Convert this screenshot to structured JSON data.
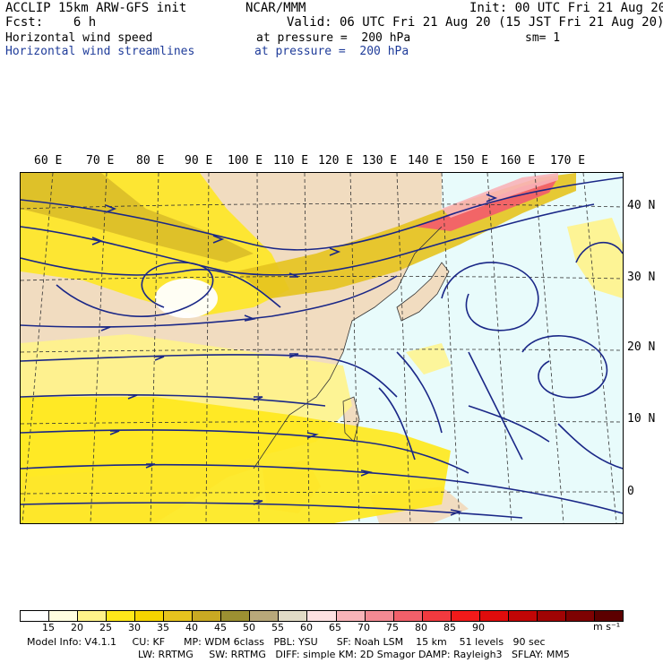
{
  "header": {
    "line1_left": "ACCLIP 15km ARW-GFS init",
    "line1_center": "NCAR/MMM",
    "line1_right": "Init: 00 UTC Fri 21 Aug 20",
    "fcst": "Fcst:    6 h",
    "valid": "Valid: 06 UTC Fri 21 Aug 20 (15 JST Fri 21 Aug 20)",
    "field1_name": "Horizontal wind speed",
    "field1_level": "at pressure =  200 hPa",
    "field1_sm": "sm= 1",
    "field2_name": "Horizontal wind streamlines",
    "field2_level": "at pressure =  200 hPa"
  },
  "map": {
    "lon_labels": [
      "60 E",
      "70 E",
      "80 E",
      "90 E",
      "100 E",
      "110 E",
      "120 E",
      "130 E",
      "140 E",
      "150 E",
      "160 E",
      "170 E"
    ],
    "lat_labels": [
      "40 N",
      "30 N",
      "20 N",
      "10 N",
      "0"
    ],
    "colors": {
      "ocean": "#e8fbfb",
      "land": "#f1dcc0",
      "streamline": "#1a2787"
    }
  },
  "colorbar": {
    "colors": [
      "#ffffff",
      "#fffde0",
      "#fff38a",
      "#ffe81a",
      "#f5d400",
      "#e6c31e",
      "#c9a923",
      "#9c9032",
      "#b8a87a",
      "#e2dcc6",
      "#fde1e1",
      "#f8b3b8",
      "#f38a93",
      "#f2606a",
      "#f23a3f",
      "#f21a1a",
      "#e00c0c",
      "#c20606",
      "#a00404",
      "#7e0202",
      "#5c0000"
    ],
    "ticks": [
      "15",
      "20",
      "25",
      "30",
      "35",
      "40",
      "45",
      "50",
      "55",
      "60",
      "65",
      "70",
      "75",
      "80",
      "85",
      "90"
    ],
    "unit": "m s⁻¹"
  },
  "footer": {
    "line1": "Model Info: V4.1.1     CU: KF      MP: WDM 6class   PBL: YSU      SF: Noah LSM    15 km    51 levels   90 sec",
    "line2": "LW: RRTMG     SW: RRTMG   DIFF: simple KM: 2D Smagor DAMP: Rayleigh3   SFLAY: MM5"
  }
}
